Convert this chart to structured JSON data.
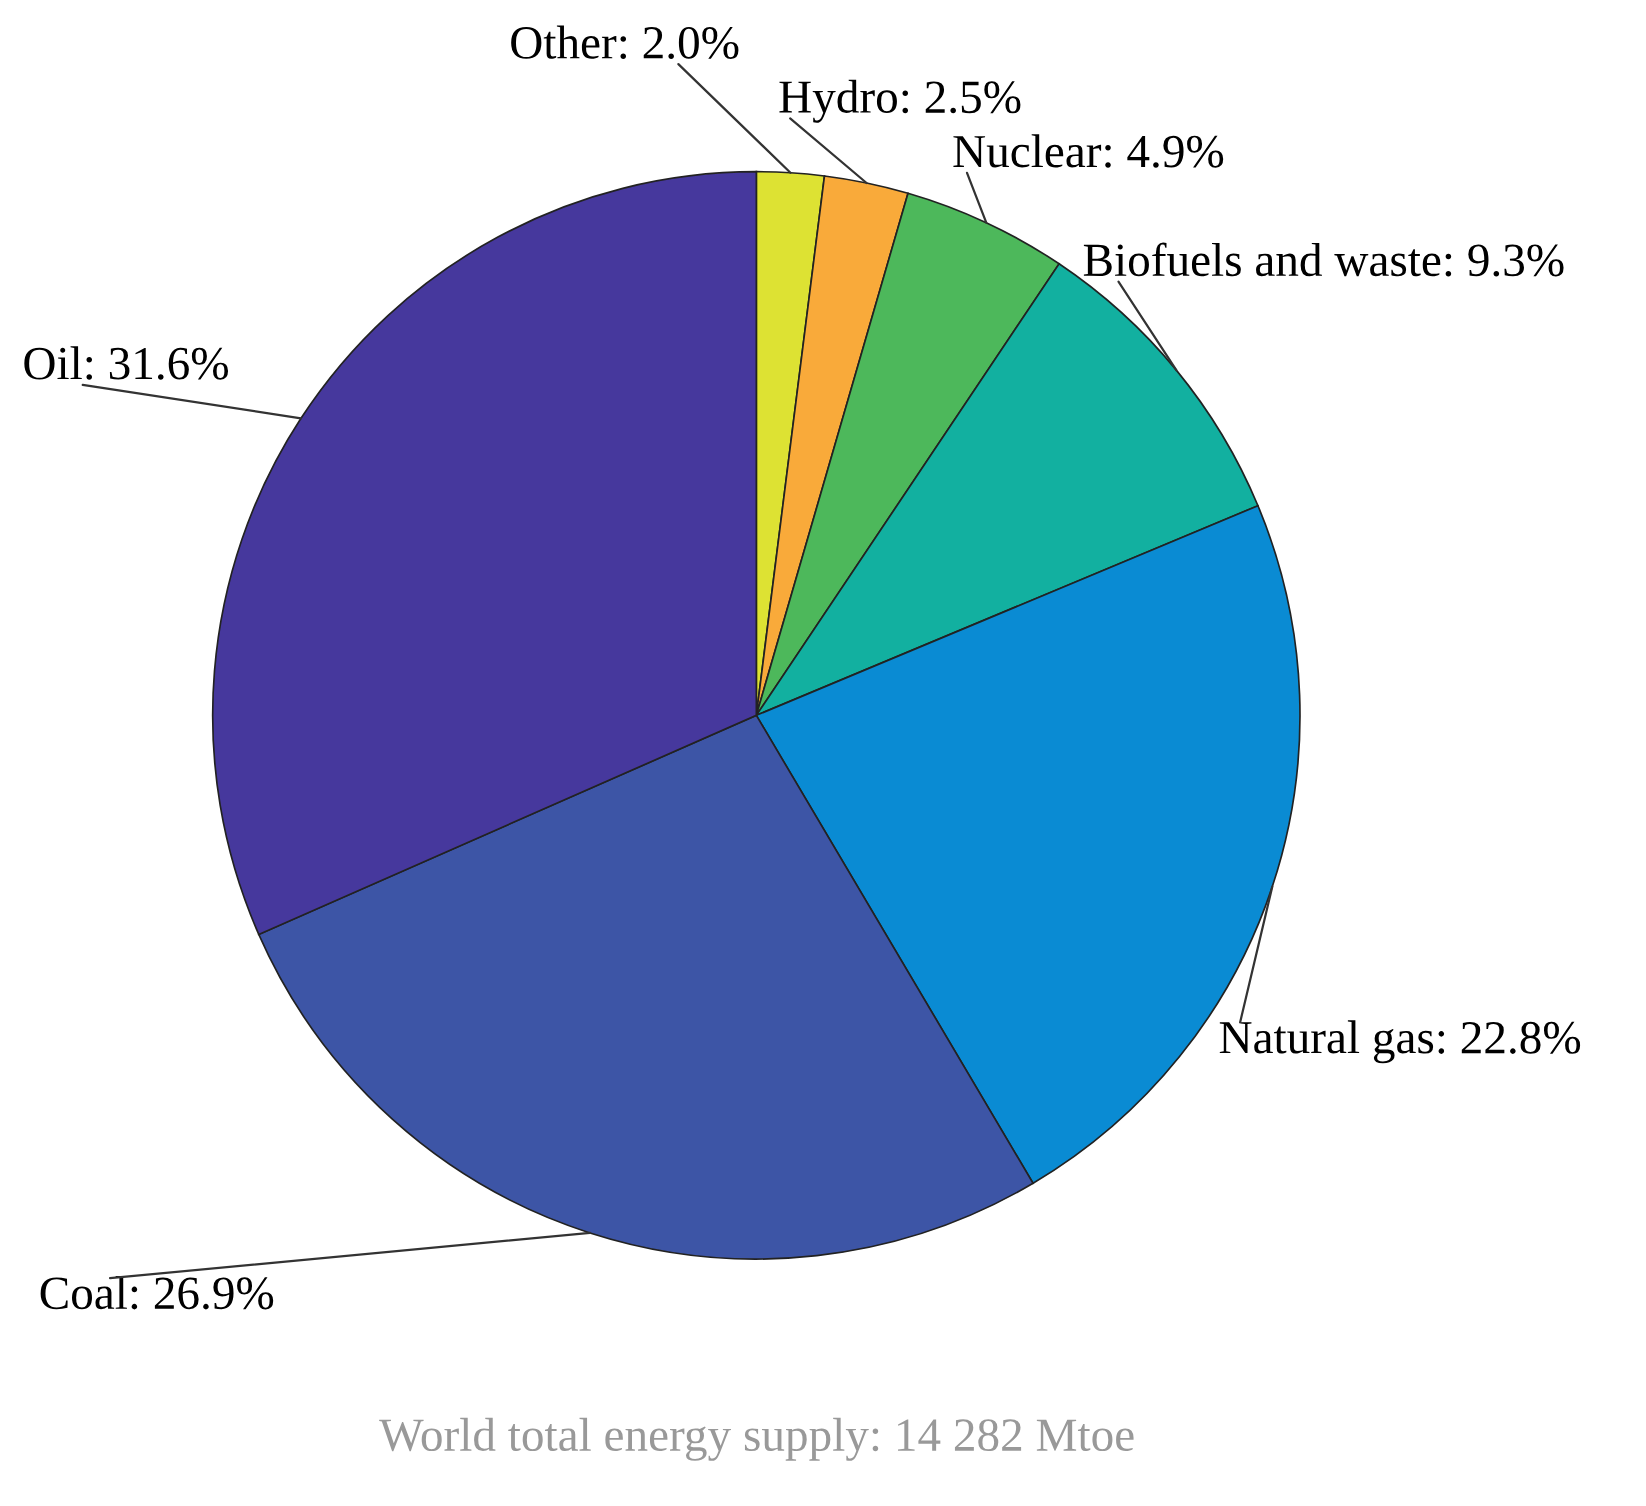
{
  "chart_data": {
    "type": "pie",
    "categories": [
      "Other",
      "Hydro",
      "Nuclear",
      "Biofuels and waste",
      "Natural gas",
      "Coal",
      "Oil"
    ],
    "values": [
      2.0,
      2.5,
      4.9,
      9.3,
      22.8,
      26.9,
      31.6
    ],
    "value_labels": [
      ": 2.0%",
      ": 2.5%",
      ": 4.9%",
      ": 9.3%",
      ": 22.8%",
      ": 26.9%",
      ": 31.6%"
    ],
    "colors": [
      "#dde233",
      "#f9aa3a",
      "#4db85b",
      "#12b0a0",
      "#0a8bd3",
      "#3d55a6",
      "#46389d"
    ],
    "annotations": [
      "World total energy supply: 14 282 Mtoe"
    ],
    "legend": false
  }
}
